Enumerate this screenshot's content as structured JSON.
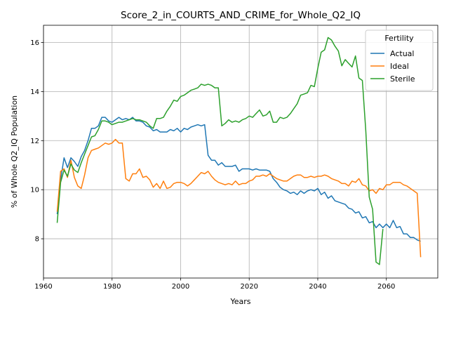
{
  "chart_data": {
    "type": "line",
    "title": "Score_2_in_COURTS_AND_CRIME_for_Whole_Q2_IQ",
    "xlabel": "Years",
    "ylabel": "% of Whole Q2_IQ Population",
    "xlim": [
      1960,
      2075
    ],
    "ylim": [
      6.4,
      16.7
    ],
    "xticks": [
      1960,
      1980,
      2000,
      2020,
      2040,
      2060
    ],
    "yticks": [
      8,
      10,
      12,
      14,
      16
    ],
    "grid": true,
    "legend": {
      "title": "Fertility",
      "placement": "top-right"
    },
    "series": [
      {
        "name": "Actual",
        "color": "#1f77b4",
        "points": [
          [
            1964,
            9.0
          ],
          [
            1965,
            10.4
          ],
          [
            1966,
            11.3
          ],
          [
            1967,
            10.9
          ],
          [
            1968,
            11.3
          ],
          [
            1969,
            11.15
          ],
          [
            1970,
            10.95
          ],
          [
            1971,
            11.35
          ],
          [
            1972,
            11.6
          ],
          [
            1973,
            12.0
          ],
          [
            1974,
            12.5
          ],
          [
            1975,
            12.5
          ],
          [
            1976,
            12.6
          ],
          [
            1977,
            12.95
          ],
          [
            1978,
            12.95
          ],
          [
            1979,
            12.8
          ],
          [
            1980,
            12.75
          ],
          [
            1981,
            12.85
          ],
          [
            1982,
            12.95
          ],
          [
            1983,
            12.85
          ],
          [
            1984,
            12.9
          ],
          [
            1985,
            12.85
          ],
          [
            1986,
            12.95
          ],
          [
            1987,
            12.8
          ],
          [
            1988,
            12.8
          ],
          [
            1989,
            12.75
          ],
          [
            1990,
            12.6
          ],
          [
            1991,
            12.55
          ],
          [
            1992,
            12.4
          ],
          [
            1993,
            12.45
          ],
          [
            1994,
            12.35
          ],
          [
            1995,
            12.35
          ],
          [
            1996,
            12.35
          ],
          [
            1997,
            12.45
          ],
          [
            1998,
            12.4
          ],
          [
            1999,
            12.5
          ],
          [
            2000,
            12.35
          ],
          [
            2001,
            12.5
          ],
          [
            2002,
            12.45
          ],
          [
            2003,
            12.55
          ],
          [
            2004,
            12.6
          ],
          [
            2005,
            12.65
          ],
          [
            2006,
            12.6
          ],
          [
            2007,
            12.65
          ],
          [
            2008,
            11.4
          ],
          [
            2009,
            11.2
          ],
          [
            2010,
            11.2
          ],
          [
            2011,
            11.0
          ],
          [
            2012,
            11.1
          ],
          [
            2013,
            10.95
          ],
          [
            2014,
            10.95
          ],
          [
            2015,
            10.95
          ],
          [
            2016,
            11.0
          ],
          [
            2017,
            10.75
          ],
          [
            2018,
            10.85
          ],
          [
            2019,
            10.85
          ],
          [
            2020,
            10.85
          ],
          [
            2021,
            10.8
          ],
          [
            2022,
            10.85
          ],
          [
            2023,
            10.8
          ],
          [
            2024,
            10.8
          ],
          [
            2025,
            10.8
          ],
          [
            2026,
            10.75
          ],
          [
            2027,
            10.45
          ],
          [
            2028,
            10.3
          ],
          [
            2029,
            10.1
          ],
          [
            2030,
            10.0
          ],
          [
            2031,
            9.95
          ],
          [
            2032,
            9.85
          ],
          [
            2033,
            9.9
          ],
          [
            2034,
            9.8
          ],
          [
            2035,
            9.95
          ],
          [
            2036,
            9.85
          ],
          [
            2037,
            9.95
          ],
          [
            2038,
            10.0
          ],
          [
            2039,
            9.95
          ],
          [
            2040,
            10.05
          ],
          [
            2041,
            9.8
          ],
          [
            2042,
            9.9
          ],
          [
            2043,
            9.65
          ],
          [
            2044,
            9.75
          ],
          [
            2045,
            9.55
          ],
          [
            2046,
            9.5
          ],
          [
            2047,
            9.45
          ],
          [
            2048,
            9.4
          ],
          [
            2049,
            9.25
          ],
          [
            2050,
            9.2
          ],
          [
            2051,
            9.05
          ],
          [
            2052,
            9.1
          ],
          [
            2053,
            8.85
          ],
          [
            2054,
            8.9
          ],
          [
            2055,
            8.65
          ],
          [
            2056,
            8.7
          ],
          [
            2057,
            8.45
          ],
          [
            2058,
            8.6
          ],
          [
            2059,
            8.45
          ],
          [
            2060,
            8.6
          ],
          [
            2061,
            8.45
          ],
          [
            2062,
            8.75
          ],
          [
            2063,
            8.45
          ],
          [
            2064,
            8.5
          ],
          [
            2065,
            8.2
          ],
          [
            2066,
            8.2
          ],
          [
            2067,
            8.05
          ],
          [
            2068,
            8.05
          ],
          [
            2069,
            7.95
          ],
          [
            2070,
            7.9
          ]
        ]
      },
      {
        "name": "Ideal",
        "color": "#ff7f0e",
        "points": [
          [
            1964,
            9.1
          ],
          [
            1965,
            10.75
          ],
          [
            1966,
            10.85
          ],
          [
            1967,
            10.5
          ],
          [
            1968,
            11.2
          ],
          [
            1969,
            10.5
          ],
          [
            1970,
            10.15
          ],
          [
            1971,
            10.05
          ],
          [
            1972,
            10.6
          ],
          [
            1973,
            11.3
          ],
          [
            1974,
            11.6
          ],
          [
            1975,
            11.65
          ],
          [
            1976,
            11.7
          ],
          [
            1977,
            11.8
          ],
          [
            1978,
            11.9
          ],
          [
            1979,
            11.85
          ],
          [
            1980,
            11.9
          ],
          [
            1981,
            12.05
          ],
          [
            1982,
            11.9
          ],
          [
            1983,
            11.9
          ],
          [
            1984,
            10.45
          ],
          [
            1985,
            10.35
          ],
          [
            1986,
            10.65
          ],
          [
            1987,
            10.65
          ],
          [
            1988,
            10.85
          ],
          [
            1989,
            10.5
          ],
          [
            1990,
            10.55
          ],
          [
            1991,
            10.4
          ],
          [
            1992,
            10.1
          ],
          [
            1993,
            10.25
          ],
          [
            1994,
            10.05
          ],
          [
            1995,
            10.35
          ],
          [
            1996,
            10.05
          ],
          [
            1997,
            10.1
          ],
          [
            1998,
            10.25
          ],
          [
            1999,
            10.3
          ],
          [
            2000,
            10.3
          ],
          [
            2001,
            10.25
          ],
          [
            2002,
            10.15
          ],
          [
            2003,
            10.25
          ],
          [
            2004,
            10.4
          ],
          [
            2005,
            10.55
          ],
          [
            2006,
            10.7
          ],
          [
            2007,
            10.65
          ],
          [
            2008,
            10.75
          ],
          [
            2009,
            10.55
          ],
          [
            2010,
            10.4
          ],
          [
            2011,
            10.3
          ],
          [
            2012,
            10.25
          ],
          [
            2013,
            10.2
          ],
          [
            2014,
            10.25
          ],
          [
            2015,
            10.2
          ],
          [
            2016,
            10.35
          ],
          [
            2017,
            10.2
          ],
          [
            2018,
            10.25
          ],
          [
            2019,
            10.25
          ],
          [
            2020,
            10.35
          ],
          [
            2021,
            10.4
          ],
          [
            2022,
            10.55
          ],
          [
            2023,
            10.55
          ],
          [
            2024,
            10.6
          ],
          [
            2025,
            10.55
          ],
          [
            2026,
            10.65
          ],
          [
            2027,
            10.55
          ],
          [
            2028,
            10.45
          ],
          [
            2029,
            10.4
          ],
          [
            2030,
            10.35
          ],
          [
            2031,
            10.35
          ],
          [
            2032,
            10.45
          ],
          [
            2033,
            10.55
          ],
          [
            2034,
            10.6
          ],
          [
            2035,
            10.6
          ],
          [
            2036,
            10.5
          ],
          [
            2037,
            10.5
          ],
          [
            2038,
            10.55
          ],
          [
            2039,
            10.5
          ],
          [
            2040,
            10.55
          ],
          [
            2041,
            10.55
          ],
          [
            2042,
            10.6
          ],
          [
            2043,
            10.55
          ],
          [
            2044,
            10.45
          ],
          [
            2045,
            10.4
          ],
          [
            2046,
            10.35
          ],
          [
            2047,
            10.25
          ],
          [
            2048,
            10.25
          ],
          [
            2049,
            10.15
          ],
          [
            2050,
            10.35
          ],
          [
            2051,
            10.3
          ],
          [
            2052,
            10.45
          ],
          [
            2053,
            10.2
          ],
          [
            2054,
            10.15
          ],
          [
            2055,
            9.95
          ],
          [
            2056,
            10.0
          ],
          [
            2057,
            9.85
          ],
          [
            2058,
            10.05
          ],
          [
            2059,
            10.0
          ],
          [
            2060,
            10.2
          ],
          [
            2061,
            10.2
          ],
          [
            2062,
            10.3
          ],
          [
            2063,
            10.3
          ],
          [
            2064,
            10.3
          ],
          [
            2065,
            10.2
          ],
          [
            2066,
            10.15
          ],
          [
            2067,
            10.05
          ],
          [
            2068,
            9.95
          ],
          [
            2069,
            9.85
          ],
          [
            2070,
            7.25
          ]
        ]
      },
      {
        "name": "Sterile",
        "color": "#2ca02c",
        "points": [
          [
            1964,
            8.65
          ],
          [
            1965,
            10.3
          ],
          [
            1966,
            10.8
          ],
          [
            1967,
            10.55
          ],
          [
            1968,
            11.05
          ],
          [
            1969,
            10.8
          ],
          [
            1970,
            10.7
          ],
          [
            1971,
            11.1
          ],
          [
            1972,
            11.45
          ],
          [
            1973,
            11.8
          ],
          [
            1974,
            12.15
          ],
          [
            1975,
            12.2
          ],
          [
            1976,
            12.45
          ],
          [
            1977,
            12.8
          ],
          [
            1978,
            12.8
          ],
          [
            1979,
            12.75
          ],
          [
            1980,
            12.65
          ],
          [
            1981,
            12.7
          ],
          [
            1982,
            12.75
          ],
          [
            1983,
            12.75
          ],
          [
            1984,
            12.8
          ],
          [
            1985,
            12.85
          ],
          [
            1986,
            12.9
          ],
          [
            1987,
            12.85
          ],
          [
            1988,
            12.85
          ],
          [
            1989,
            12.8
          ],
          [
            1990,
            12.75
          ],
          [
            1991,
            12.6
          ],
          [
            1992,
            12.5
          ],
          [
            1993,
            12.9
          ],
          [
            1994,
            12.9
          ],
          [
            1995,
            12.95
          ],
          [
            1996,
            13.2
          ],
          [
            1997,
            13.4
          ],
          [
            1998,
            13.65
          ],
          [
            1999,
            13.6
          ],
          [
            2000,
            13.8
          ],
          [
            2001,
            13.85
          ],
          [
            2002,
            13.95
          ],
          [
            2003,
            14.05
          ],
          [
            2004,
            14.1
          ],
          [
            2005,
            14.15
          ],
          [
            2006,
            14.3
          ],
          [
            2007,
            14.25
          ],
          [
            2008,
            14.3
          ],
          [
            2009,
            14.25
          ],
          [
            2010,
            14.15
          ],
          [
            2011,
            14.15
          ],
          [
            2012,
            12.6
          ],
          [
            2013,
            12.7
          ],
          [
            2014,
            12.85
          ],
          [
            2015,
            12.75
          ],
          [
            2016,
            12.8
          ],
          [
            2017,
            12.75
          ],
          [
            2018,
            12.85
          ],
          [
            2019,
            12.9
          ],
          [
            2020,
            13.0
          ],
          [
            2021,
            12.95
          ],
          [
            2022,
            13.1
          ],
          [
            2023,
            13.25
          ],
          [
            2024,
            13.0
          ],
          [
            2025,
            13.05
          ],
          [
            2026,
            13.2
          ],
          [
            2027,
            12.75
          ],
          [
            2028,
            12.75
          ],
          [
            2029,
            12.95
          ],
          [
            2030,
            12.9
          ],
          [
            2031,
            12.95
          ],
          [
            2032,
            13.1
          ],
          [
            2033,
            13.3
          ],
          [
            2034,
            13.5
          ],
          [
            2035,
            13.85
          ],
          [
            2036,
            13.9
          ],
          [
            2037,
            13.95
          ],
          [
            2038,
            14.25
          ],
          [
            2039,
            14.2
          ],
          [
            2040,
            14.95
          ],
          [
            2041,
            15.6
          ],
          [
            2042,
            15.7
          ],
          [
            2043,
            16.2
          ],
          [
            2044,
            16.1
          ],
          [
            2045,
            15.85
          ],
          [
            2046,
            15.65
          ],
          [
            2047,
            15.05
          ],
          [
            2048,
            15.3
          ],
          [
            2049,
            15.15
          ],
          [
            2050,
            15.0
          ],
          [
            2051,
            15.45
          ],
          [
            2052,
            14.55
          ],
          [
            2053,
            14.45
          ],
          [
            2054,
            12.4
          ],
          [
            2055,
            9.7
          ],
          [
            2056,
            9.2
          ],
          [
            2057,
            7.05
          ],
          [
            2058,
            6.95
          ],
          [
            2059,
            8.4
          ]
        ]
      }
    ]
  }
}
